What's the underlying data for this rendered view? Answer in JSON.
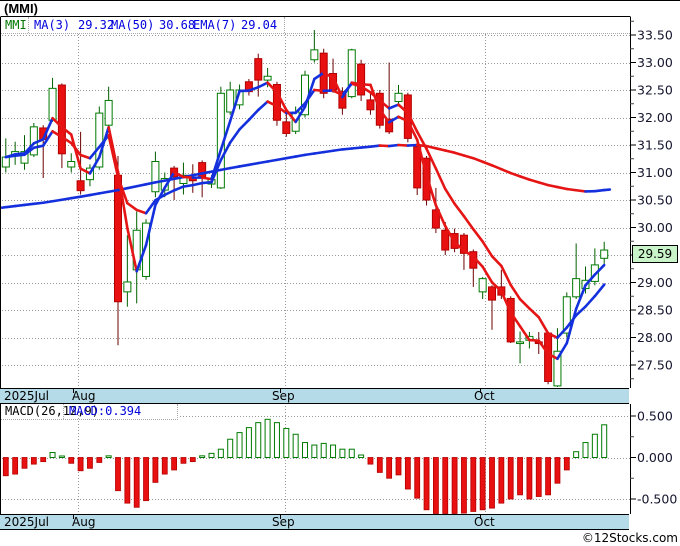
{
  "title": "(MMI)",
  "watermark": "©12Stocks.com",
  "legend": {
    "symbol": "MMI",
    "items": [
      {
        "label": "MA(3)",
        "value": "29.32"
      },
      {
        "label": "MA(50)",
        "value": "30.68"
      },
      {
        "label": "EMA(7)",
        "value": "29.04"
      }
    ]
  },
  "macd_legend": {
    "label": "MACD(26,12,9)",
    "value": "MACD:0.394"
  },
  "price_tag": "29.59",
  "colors": {
    "up": "#007a00",
    "up_wick": "#006000",
    "down": "#e81010",
    "down_border": "#b30000",
    "down_wick": "#6b0000",
    "ma_up": "#1430dd",
    "ma_down": "#e51515",
    "grid": "#999999",
    "frame": "#000000",
    "axis_text": "#14142d",
    "date_bar_bg": "#b6dbe8",
    "tag_bg": "#c9f3c9",
    "legend_green": "#007700",
    "legend_blue": "#0000dd"
  },
  "x_axis": {
    "month_labels": [
      {
        "text": "2025Jul",
        "x": 4
      },
      {
        "text": "Aug",
        "x": 72
      },
      {
        "text": "Sep",
        "x": 272
      },
      {
        "text": "Oct",
        "x": 474
      }
    ],
    "gridlines_x": [
      78,
      285,
      485
    ]
  },
  "chart_data": [
    {
      "type": "candlestick",
      "title": "MMI daily price with MA(3), MA(50), EMA(7)",
      "ylabel": "Price",
      "y_ticks": [
        "33.50",
        "33.00",
        "32.50",
        "32.00",
        "31.50",
        "31.00",
        "30.50",
        "30.00",
        "29.50",
        "29.00",
        "28.50",
        "28.00",
        "27.50"
      ],
      "ylim": [
        27.09,
        33.77
      ],
      "last_price": 29.59,
      "candles_ohlc": [
        [
          31.1,
          31.62,
          31.0,
          31.28
        ],
        [
          31.3,
          31.56,
          31.14,
          31.38
        ],
        [
          31.17,
          31.68,
          31.05,
          31.38
        ],
        [
          31.32,
          31.9,
          31.28,
          31.83
        ],
        [
          31.81,
          31.86,
          30.9,
          31.6
        ],
        [
          31.95,
          32.72,
          31.92,
          32.53
        ],
        [
          32.59,
          32.62,
          31.08,
          31.34
        ],
        [
          31.1,
          31.35,
          31.0,
          31.2
        ],
        [
          30.85,
          31.74,
          30.6,
          30.67
        ],
        [
          30.87,
          31.15,
          30.75,
          31.08
        ],
        [
          31.1,
          32.2,
          31.05,
          32.08
        ],
        [
          31.86,
          32.56,
          31.8,
          32.31
        ],
        [
          30.95,
          31.3,
          27.86,
          28.65
        ],
        [
          28.83,
          29.86,
          28.56,
          29.01
        ],
        [
          29.23,
          30.29,
          28.62,
          29.95
        ],
        [
          29.11,
          30.15,
          29.05,
          30.08
        ],
        [
          30.65,
          31.38,
          30.55,
          31.2
        ],
        [
          30.68,
          31.0,
          30.55,
          30.89
        ],
        [
          31.08,
          31.12,
          30.5,
          30.92
        ],
        [
          30.8,
          31.18,
          30.6,
          30.95
        ],
        [
          30.9,
          31.15,
          30.63,
          30.85
        ],
        [
          31.18,
          31.22,
          30.55,
          30.92
        ],
        [
          30.79,
          30.95,
          30.72,
          30.87
        ],
        [
          30.72,
          32.56,
          30.7,
          32.44
        ],
        [
          32.1,
          32.65,
          32.05,
          32.5
        ],
        [
          32.23,
          32.6,
          32.15,
          32.5
        ],
        [
          32.65,
          32.7,
          32.4,
          32.47
        ],
        [
          33.07,
          33.16,
          32.38,
          32.68
        ],
        [
          32.68,
          32.9,
          32.55,
          32.75
        ],
        [
          32.6,
          32.65,
          31.85,
          31.95
        ],
        [
          31.92,
          32.1,
          31.65,
          31.71
        ],
        [
          31.75,
          32.2,
          31.7,
          32.1
        ],
        [
          32.05,
          32.85,
          32.0,
          32.77
        ],
        [
          33.05,
          33.59,
          33.0,
          33.23
        ],
        [
          33.17,
          33.25,
          32.35,
          32.44
        ],
        [
          32.8,
          33.07,
          32.45,
          32.5
        ],
        [
          32.47,
          32.55,
          32.05,
          32.17
        ],
        [
          32.38,
          33.25,
          32.35,
          33.23
        ],
        [
          32.97,
          33.05,
          32.3,
          32.41
        ],
        [
          32.32,
          32.45,
          32.05,
          32.14
        ],
        [
          32.44,
          32.5,
          31.8,
          31.86
        ],
        [
          31.97,
          33.0,
          31.7,
          31.74
        ],
        [
          32.29,
          32.59,
          32.2,
          32.44
        ],
        [
          32.41,
          32.45,
          31.55,
          31.62
        ],
        [
          31.47,
          31.6,
          30.59,
          30.72
        ],
        [
          31.26,
          31.3,
          30.4,
          30.5
        ],
        [
          30.32,
          30.72,
          29.9,
          29.99
        ],
        [
          29.95,
          30.1,
          29.5,
          29.59
        ],
        [
          29.89,
          29.98,
          29.55,
          29.62
        ],
        [
          29.86,
          29.9,
          29.23,
          29.53
        ],
        [
          29.56,
          29.6,
          28.92,
          29.26
        ],
        [
          28.83,
          29.1,
          28.7,
          29.07
        ],
        [
          28.92,
          28.95,
          28.14,
          28.68
        ],
        [
          28.92,
          29.23,
          28.7,
          28.77
        ],
        [
          28.71,
          28.75,
          27.9,
          27.92
        ],
        [
          27.89,
          28.11,
          27.53,
          27.92
        ],
        [
          27.95,
          28.1,
          27.8,
          28.02
        ],
        [
          27.92,
          28.1,
          27.7,
          27.89
        ],
        [
          28.08,
          28.1,
          27.15,
          27.2
        ],
        [
          27.12,
          28.17,
          27.1,
          27.75
        ],
        [
          28.08,
          28.82,
          28.0,
          28.74
        ],
        [
          28.74,
          29.71,
          28.7,
          29.07
        ],
        [
          28.89,
          29.29,
          28.8,
          29.04
        ],
        [
          29.02,
          29.62,
          28.95,
          29.32
        ],
        [
          29.44,
          29.74,
          29.3,
          29.59
        ]
      ],
      "ma50_points": [
        [
          -0.4,
          30.36
        ],
        [
          0,
          30.37
        ],
        [
          4,
          30.45
        ],
        [
          8,
          30.56
        ],
        [
          12,
          30.68
        ],
        [
          16,
          30.82
        ],
        [
          20,
          30.95
        ],
        [
          24,
          31.08
        ],
        [
          28,
          31.2
        ],
        [
          32,
          31.32
        ],
        [
          36,
          31.42
        ],
        [
          39,
          31.47
        ],
        [
          40,
          31.49
        ],
        [
          41,
          31.48
        ],
        [
          42,
          31.5
        ],
        [
          43,
          31.49
        ],
        [
          44,
          31.5
        ],
        [
          45,
          31.48
        ],
        [
          46,
          31.44
        ],
        [
          48,
          31.36
        ],
        [
          50,
          31.26
        ],
        [
          52,
          31.13
        ],
        [
          54,
          30.99
        ],
        [
          56,
          30.87
        ],
        [
          58,
          30.77
        ],
        [
          60,
          30.7
        ],
        [
          62,
          30.655
        ],
        [
          63,
          30.66
        ],
        [
          64,
          30.68
        ],
        [
          64.6,
          30.69
        ]
      ],
      "indicators_note": "MA(3) and EMA(7) computed from closes; lines blue when rising, red when falling"
    },
    {
      "type": "bar",
      "title": "MACD(26,12,9) histogram",
      "y_ticks": [
        "0.500",
        "0.000",
        "-0.500"
      ],
      "last_value": 0.394,
      "values": [
        -0.22,
        -0.2,
        -0.13,
        -0.08,
        -0.05,
        0.06,
        0.01,
        -0.07,
        -0.16,
        -0.13,
        -0.06,
        0.02,
        -0.4,
        -0.55,
        -0.6,
        -0.52,
        -0.3,
        -0.2,
        -0.15,
        -0.07,
        -0.05,
        0.02,
        0.05,
        0.1,
        0.22,
        0.3,
        0.36,
        0.42,
        0.46,
        0.42,
        0.35,
        0.28,
        0.18,
        0.15,
        0.17,
        0.15,
        0.1,
        0.1,
        0.03,
        -0.08,
        -0.18,
        -0.25,
        -0.21,
        -0.38,
        -0.49,
        -0.63,
        -0.69,
        -0.71,
        -0.69,
        -0.67,
        -0.65,
        -0.63,
        -0.61,
        -0.55,
        -0.5,
        -0.45,
        -0.5,
        -0.47,
        -0.45,
        -0.31,
        -0.15,
        0.07,
        0.18,
        0.28,
        0.394
      ]
    }
  ]
}
